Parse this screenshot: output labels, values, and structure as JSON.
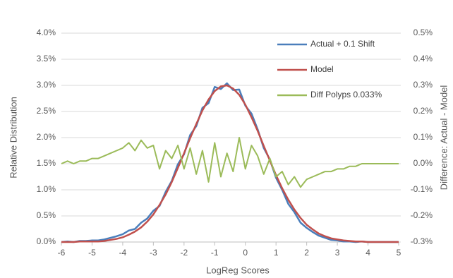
{
  "chart_data": {
    "type": "line",
    "xlabel": "LogReg Scores",
    "ylabel": "Relative Distribution",
    "y2label": "Difference: Actual - Model",
    "x": [
      -6,
      -5.8,
      -5.6,
      -5.4,
      -5.2,
      -5,
      -4.8,
      -4.6,
      -4.4,
      -4.2,
      -4,
      -3.8,
      -3.6,
      -3.4,
      -3.2,
      -3,
      -2.8,
      -2.6,
      -2.4,
      -2.2,
      -2,
      -1.8,
      -1.6,
      -1.4,
      -1.2,
      -1,
      -0.8,
      -0.6,
      -0.4,
      -0.2,
      0,
      0.2,
      0.4,
      0.6,
      0.8,
      1,
      1.2,
      1.4,
      1.6,
      1.8,
      2,
      2.2,
      2.4,
      2.6,
      2.8,
      3,
      3.2,
      3.4,
      3.6,
      3.8,
      4,
      4.2,
      4.4,
      4.6,
      4.8,
      5
    ],
    "series": [
      {
        "name": "Actual + 0.1 Shift",
        "color": "#4a7ebb",
        "axis": "y",
        "values": [
          0.0,
          0.01,
          0.0,
          0.02,
          0.02,
          0.03,
          0.03,
          0.05,
          0.08,
          0.11,
          0.15,
          0.22,
          0.25,
          0.37,
          0.45,
          0.6,
          0.69,
          0.96,
          1.17,
          1.49,
          1.68,
          2.05,
          2.22,
          2.57,
          2.66,
          2.97,
          2.93,
          3.04,
          2.91,
          2.92,
          2.61,
          2.46,
          2.16,
          1.8,
          1.58,
          1.23,
          1.0,
          0.73,
          0.57,
          0.37,
          0.27,
          0.19,
          0.12,
          0.08,
          0.04,
          0.03,
          0.01,
          0.01,
          0.0,
          0.01,
          0,
          0,
          0,
          0,
          0,
          0
        ]
      },
      {
        "name": "Model",
        "color": "#c0504d",
        "axis": "y",
        "values": [
          0.0,
          0.0,
          0.0,
          0.01,
          0.01,
          0.01,
          0.01,
          0.02,
          0.04,
          0.06,
          0.09,
          0.14,
          0.2,
          0.28,
          0.39,
          0.53,
          0.71,
          0.91,
          1.15,
          1.42,
          1.7,
          1.99,
          2.26,
          2.52,
          2.73,
          2.89,
          2.98,
          3.0,
          2.94,
          2.82,
          2.63,
          2.39,
          2.13,
          1.84,
          1.56,
          1.28,
          1.03,
          0.81,
          0.62,
          0.46,
          0.33,
          0.24,
          0.16,
          0.11,
          0.07,
          0.05,
          0.03,
          0.02,
          0.01,
          0.01,
          0,
          0,
          0,
          0,
          0,
          0
        ]
      },
      {
        "name": "Diff Polyps 0.033%",
        "color": "#9bbb59",
        "axis": "y2",
        "values": [
          0.0,
          0.01,
          0.0,
          0.01,
          0.01,
          0.02,
          0.02,
          0.03,
          0.04,
          0.05,
          0.06,
          0.08,
          0.05,
          0.09,
          0.06,
          0.07,
          -0.02,
          0.05,
          0.02,
          0.07,
          -0.02,
          0.06,
          -0.04,
          0.05,
          -0.07,
          0.08,
          -0.05,
          0.04,
          -0.03,
          0.1,
          -0.02,
          0.07,
          0.03,
          -0.04,
          0.02,
          -0.05,
          -0.03,
          -0.08,
          -0.05,
          -0.09,
          -0.06,
          -0.05,
          -0.04,
          -0.03,
          -0.03,
          -0.02,
          -0.02,
          -0.01,
          -0.01,
          0,
          0,
          0,
          0,
          0,
          0,
          0
        ]
      }
    ],
    "xlim": [
      -6,
      5
    ],
    "xticks": [
      -6,
      -5,
      -4,
      -3,
      -2,
      -1,
      0,
      1,
      2,
      3,
      4,
      5
    ],
    "ylim": [
      0,
      4
    ],
    "yticks": [
      {
        "value": 0,
        "label": "0.0%"
      },
      {
        "value": 0.5,
        "label": "0.5%"
      },
      {
        "value": 1,
        "label": "1.0%"
      },
      {
        "value": 1.5,
        "label": "1.5%"
      },
      {
        "value": 2,
        "label": "2.0%"
      },
      {
        "value": 2.5,
        "label": "2.5%"
      },
      {
        "value": 3,
        "label": "3.0%"
      },
      {
        "value": 3.5,
        "label": "3.5%"
      },
      {
        "value": 4,
        "label": "4.0%"
      }
    ],
    "y2lim": [
      -0.3,
      0.5
    ],
    "y2ticks": [
      {
        "value": -0.3,
        "label": "-0.3%"
      },
      {
        "value": -0.2,
        "label": "-0.2%"
      },
      {
        "value": -0.1,
        "label": "-0.1%"
      },
      {
        "value": 0,
        "label": "0.0%"
      },
      {
        "value": 0.1,
        "label": "0.1%"
      },
      {
        "value": 0.2,
        "label": "0.2%"
      },
      {
        "value": 0.3,
        "label": "0.3%"
      },
      {
        "value": 0.4,
        "label": "0.4%"
      },
      {
        "value": 0.5,
        "label": "0.5%"
      }
    ],
    "grid": true,
    "legend": "upper right"
  }
}
